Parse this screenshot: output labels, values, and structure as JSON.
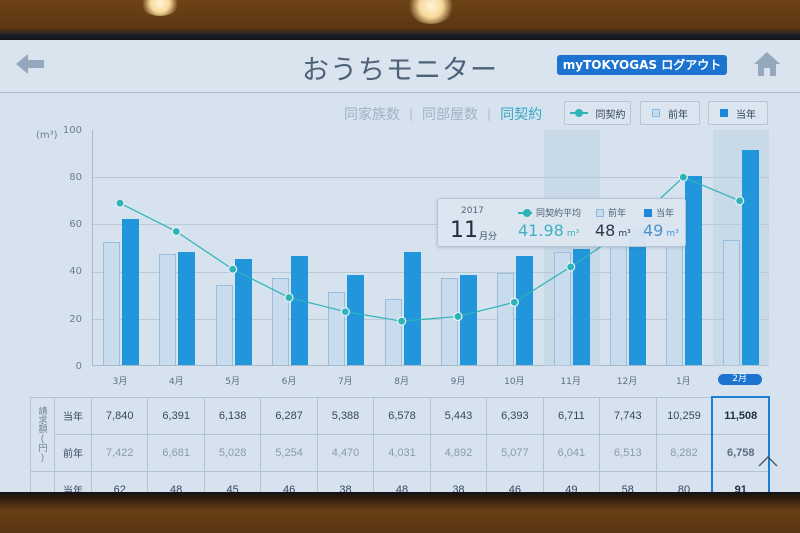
{
  "header": {
    "title": "おうちモニター",
    "logout_label": "myTOKYOGAS ログアウト",
    "back_icon": "arrow-left-icon",
    "home_icon": "home-icon"
  },
  "filters": {
    "items": [
      {
        "label": "同家族数",
        "active": false
      },
      {
        "label": "同部屋数",
        "active": false
      },
      {
        "label": "同契約",
        "active": true
      }
    ]
  },
  "legend": {
    "average": "同契約",
    "previous": "前年",
    "current": "当年"
  },
  "colors": {
    "current_bar": "#2196db",
    "previous_bar": "#c8dcee",
    "average_line": "#2eb3b8",
    "accent": "#1c74d0"
  },
  "chart": {
    "y_unit": "(m³)",
    "y_ticks": [
      "100",
      "80",
      "60",
      "40",
      "20",
      "0"
    ],
    "months": [
      "3月",
      "4月",
      "5月",
      "6月",
      "7月",
      "8月",
      "9月",
      "10月",
      "11月",
      "12月",
      "1月",
      "2月"
    ],
    "selected_month_index": 11
  },
  "chart_data": {
    "type": "bar",
    "title": "おうちモニター",
    "xlabel": "",
    "ylabel": "(m³)",
    "ylim": [
      0,
      100
    ],
    "grid": true,
    "categories": [
      "3月",
      "4月",
      "5月",
      "6月",
      "7月",
      "8月",
      "9月",
      "10月",
      "11月",
      "12月",
      "1月",
      "2月"
    ],
    "series": [
      {
        "name": "前年",
        "type": "bar",
        "values": [
          52,
          47,
          34,
          37,
          31,
          28,
          37,
          39,
          48,
          57,
          67,
          53
        ]
      },
      {
        "name": "当年",
        "type": "bar",
        "values": [
          62,
          48,
          45,
          46,
          38,
          48,
          38,
          46,
          49,
          58,
          80,
          91
        ]
      },
      {
        "name": "同契約平均",
        "type": "line",
        "values": [
          69,
          57,
          41,
          29,
          23,
          19,
          21,
          27,
          41.98,
          58,
          80,
          70
        ]
      }
    ],
    "legend": [
      "同契約",
      "前年",
      "当年"
    ]
  },
  "tooltip": {
    "year": "2017",
    "month": "11",
    "month_unit": "月分",
    "avg_label": "同契約平均",
    "avg_value": "41.98",
    "prev_label": "前年",
    "prev_value": "48",
    "curr_label": "当年",
    "curr_value": "49",
    "unit": "m³"
  },
  "table": {
    "group_label": "請求額(円)",
    "rows": [
      {
        "label": "当年",
        "values": [
          "7,840",
          "6,391",
          "6,138",
          "6,287",
          "5,388",
          "6,578",
          "5,443",
          "6,393",
          "6,711",
          "7,743",
          "10,259",
          "11,508"
        ]
      },
      {
        "label": "前年",
        "values": [
          "7,422",
          "6,681",
          "5,028",
          "5,254",
          "4,470",
          "4,031",
          "4,892",
          "5,077",
          "6,041",
          "6,513",
          "8,282",
          "6,758"
        ]
      },
      {
        "label": "当年",
        "values": [
          "62",
          "48",
          "45",
          "46",
          "38",
          "48",
          "38",
          "46",
          "49",
          "58",
          "80",
          "91"
        ]
      }
    ]
  }
}
